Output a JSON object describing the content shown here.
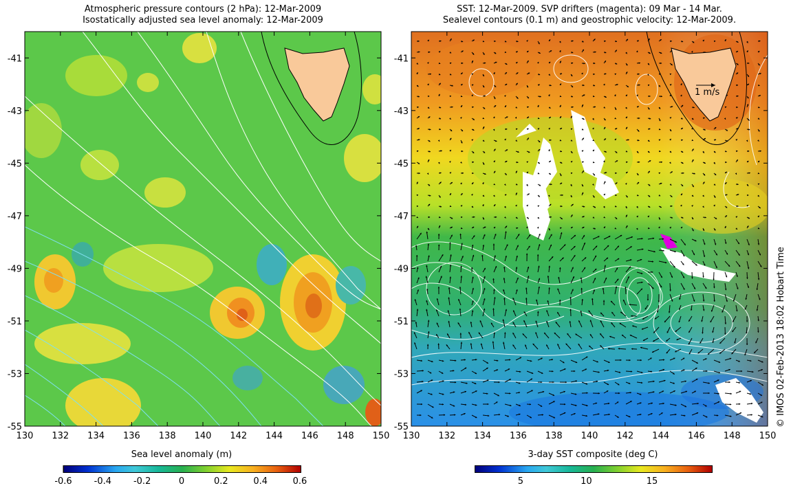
{
  "left_panel": {
    "title_line1": "Atmospheric pressure contours (2 hPa): 12-Mar-2009",
    "title_line2": "Isostatically adjusted sea level anomaly: 12-Mar-2009",
    "x_ticks": [
      "130",
      "132",
      "134",
      "136",
      "138",
      "140",
      "142",
      "144",
      "146",
      "148",
      "150"
    ],
    "y_ticks": [
      "-41",
      "-43",
      "-45",
      "-47",
      "-49",
      "-51",
      "-53",
      "-55"
    ],
    "colorbar_title": "Sea level anomaly (m)",
    "colorbar_ticks": [
      "-0.6",
      "-0.4",
      "-0.2",
      "0",
      "0.2",
      "0.4",
      "0.6"
    ]
  },
  "right_panel": {
    "title_line1": "SST: 12-Mar-2009. SVP drifters (magenta): 09 Mar - 14 Mar.",
    "title_line2": "Sealevel contours (0.1 m) and geostrophic velocity: 12-Mar-2009.",
    "x_ticks": [
      "130",
      "132",
      "134",
      "136",
      "138",
      "140",
      "142",
      "144",
      "146",
      "148",
      "150"
    ],
    "y_ticks": [
      "-41",
      "-43",
      "-45",
      "-47",
      "-49",
      "-51",
      "-53",
      "-55"
    ],
    "scale_arrow_label": "1 m/s",
    "colorbar_title": "3-day SST composite (deg C)",
    "colorbar_ticks": [
      "5",
      "10",
      "15"
    ]
  },
  "credit": "© IMOS 02-Feb-2013 18:02 Hobart Time",
  "map_extent": {
    "lon": [
      130,
      150
    ],
    "lat": [
      -55,
      -40
    ]
  },
  "colors": {
    "land": "#f9c99a",
    "sst_warm": "#e8701c",
    "sst_cold": "#2a9de6",
    "sla_background": "#5cc84a",
    "drifter": "#e000e0"
  }
}
